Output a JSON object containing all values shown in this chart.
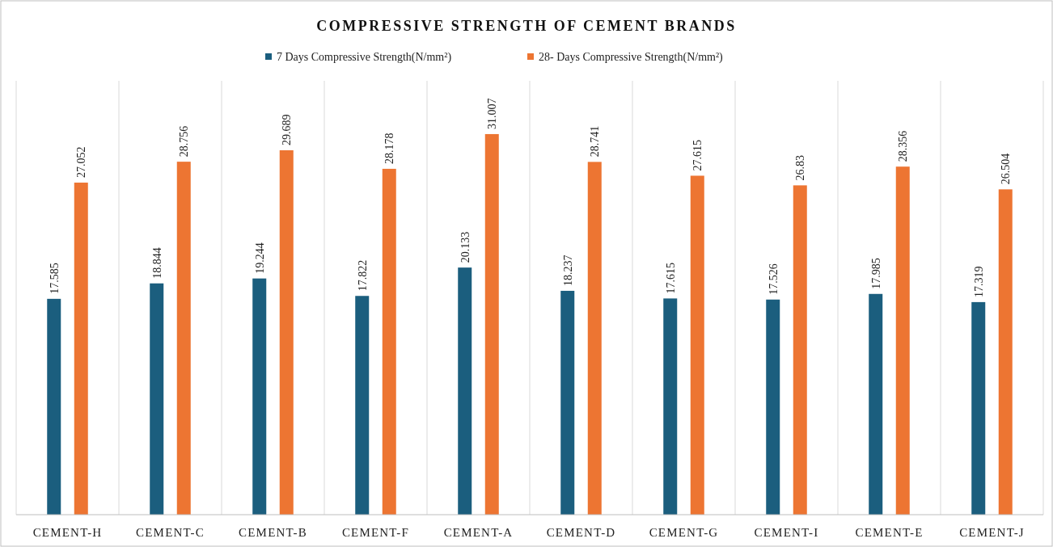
{
  "chart_data": {
    "type": "bar",
    "title": "COMPRESSIVE STRENGTH OF CEMENT BRANDS",
    "categories": [
      "CEMENT-H",
      "CEMENT-C",
      "CEMENT-B",
      "CEMENT-F",
      "CEMENT-A",
      "CEMENT-D",
      "CEMENT-G",
      "CEMENT-I",
      "CEMENT-E",
      "CEMENT-J"
    ],
    "series": [
      {
        "name": "7 Days Compressive Strength(N/mm²)",
        "color": "#1b5e7e",
        "values": [
          17.585,
          18.844,
          19.244,
          17.822,
          20.133,
          18.237,
          17.615,
          17.526,
          17.985,
          17.319
        ]
      },
      {
        "name": "28- Days Compressive Strength(N/mm²)",
        "color": "#ed7532",
        "values": [
          27.052,
          28.756,
          29.689,
          28.178,
          31.007,
          28.741,
          27.615,
          26.83,
          28.356,
          26.504
        ]
      }
    ],
    "data_labels": true,
    "grid": "x",
    "legend": "top"
  }
}
